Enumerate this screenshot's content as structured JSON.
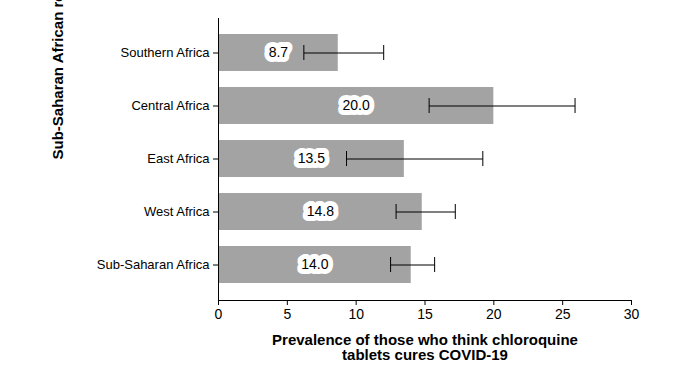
{
  "chart_data": {
    "type": "bar",
    "orientation": "horizontal",
    "x_label": "Prevalence of those who think chloroquine tablets cures COVID-19",
    "y_label": "Sub-Saharan African regions",
    "categories": [
      "Southern Africa",
      "Central Africa",
      "East Africa",
      "West Africa",
      "Sub-Saharan Africa"
    ],
    "values": [
      8.7,
      20.0,
      13.5,
      14.8,
      14.0
    ],
    "value_labels": [
      "8.7",
      "20.0",
      "13.5",
      "14.8",
      "14.0"
    ],
    "error_low": [
      6.2,
      15.3,
      9.3,
      12.9,
      12.5
    ],
    "error_high": [
      12.0,
      25.9,
      19.2,
      17.2,
      15.7
    ],
    "xlim": [
      0,
      30
    ],
    "xticks": [
      0,
      5,
      10,
      15,
      20,
      25,
      30
    ],
    "color": "#a3a3a3",
    "data_labels": true,
    "grid": false
  }
}
